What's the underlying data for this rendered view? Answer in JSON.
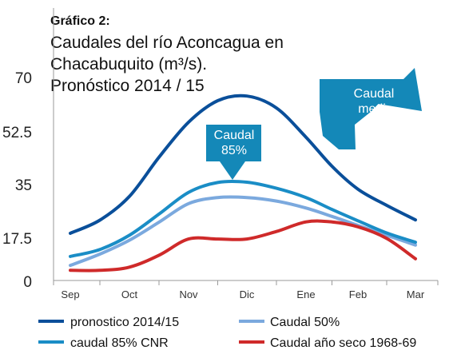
{
  "chart_data": {
    "type": "line",
    "title_prefix": "Gráfico 2:",
    "title_lines": [
      "Caudales del  río Aconcagua en",
      "Chacabuquito (m³/s).",
      "Pronóstico 2014 / 15"
    ],
    "categories": [
      "Sep",
      "Oct",
      "Nov",
      "Dic",
      "Ene",
      "Feb",
      "Mar"
    ],
    "y_ticks": [
      "70",
      "52.5",
      "35",
      "17.5",
      "0"
    ],
    "ylim": [
      0,
      70
    ],
    "grid": false,
    "colors": {
      "pronostico": "#0a4f9a",
      "caudal85": "#1a8dc6",
      "caudal50": "#7ba9de",
      "ano_seco": "#cf2a2a",
      "callout": "#1488b8"
    },
    "series": [
      {
        "name": "pronostico 2014/15",
        "color": "#0a4f9a",
        "x": [
          0,
          0.5,
          1,
          1.5,
          2,
          2.5,
          3,
          3.5,
          4,
          4.5,
          5,
          5.5,
          6
        ],
        "values": [
          16.3,
          20.8,
          29.0,
          42.5,
          54.6,
          62.0,
          63.6,
          59.5,
          49.4,
          39.4,
          31.5,
          25.9,
          20.9
        ]
      },
      {
        "name": "caudal 85% CNR",
        "color": "#1a8dc6",
        "x": [
          0,
          0.5,
          1,
          1.5,
          2,
          2.5,
          3,
          3.5,
          4,
          4.5,
          5,
          5.5,
          6
        ],
        "values": [
          8.3,
          10.7,
          15.6,
          22.9,
          30.4,
          33.8,
          33.9,
          31.8,
          28.6,
          24.5,
          20.6,
          16.4,
          13.2
        ]
      },
      {
        "name": "Caudal 50%",
        "color": "#7ba9de",
        "x": [
          0,
          0.5,
          1,
          1.5,
          2,
          2.5,
          3,
          3.5,
          4,
          4.5,
          5,
          5.5,
          6
        ],
        "values": [
          5.2,
          9.1,
          13.9,
          20.1,
          26.5,
          28.6,
          28.6,
          27.4,
          25.0,
          22.1,
          19.0,
          15.6,
          12.2
        ]
      },
      {
        "name": "Caudal año seco 1968-69",
        "color": "#cf2a2a",
        "x": [
          0,
          0.5,
          1,
          1.5,
          2,
          2.5,
          3,
          3.5,
          4,
          4.5,
          5,
          5.5,
          6
        ],
        "values": [
          3.5,
          3.5,
          4.6,
          8.7,
          14.3,
          14.3,
          14.3,
          16.9,
          20.2,
          20.2,
          18.5,
          14.5,
          7.5
        ]
      }
    ],
    "legend": {
      "placement": "bottom",
      "items": [
        {
          "label": "pronostico 2014/15",
          "color": "#0a4f9a"
        },
        {
          "label": "Caudal 50%",
          "color": "#7ba9de"
        },
        {
          "label": "caudal 85% CNR",
          "color": "#1a8dc6"
        },
        {
          "label": "Caudal año seco 1968-69",
          "color": "#cf2a2a"
        }
      ]
    },
    "annotations": [
      {
        "id": "caudal85",
        "lines": [
          "Caudal",
          "85%"
        ],
        "points_to": "caudal 85% CNR"
      },
      {
        "id": "caudal-medio",
        "lines": [
          "Caudal",
          "medio"
        ],
        "points_to": "pronostico 2014/15"
      }
    ]
  }
}
